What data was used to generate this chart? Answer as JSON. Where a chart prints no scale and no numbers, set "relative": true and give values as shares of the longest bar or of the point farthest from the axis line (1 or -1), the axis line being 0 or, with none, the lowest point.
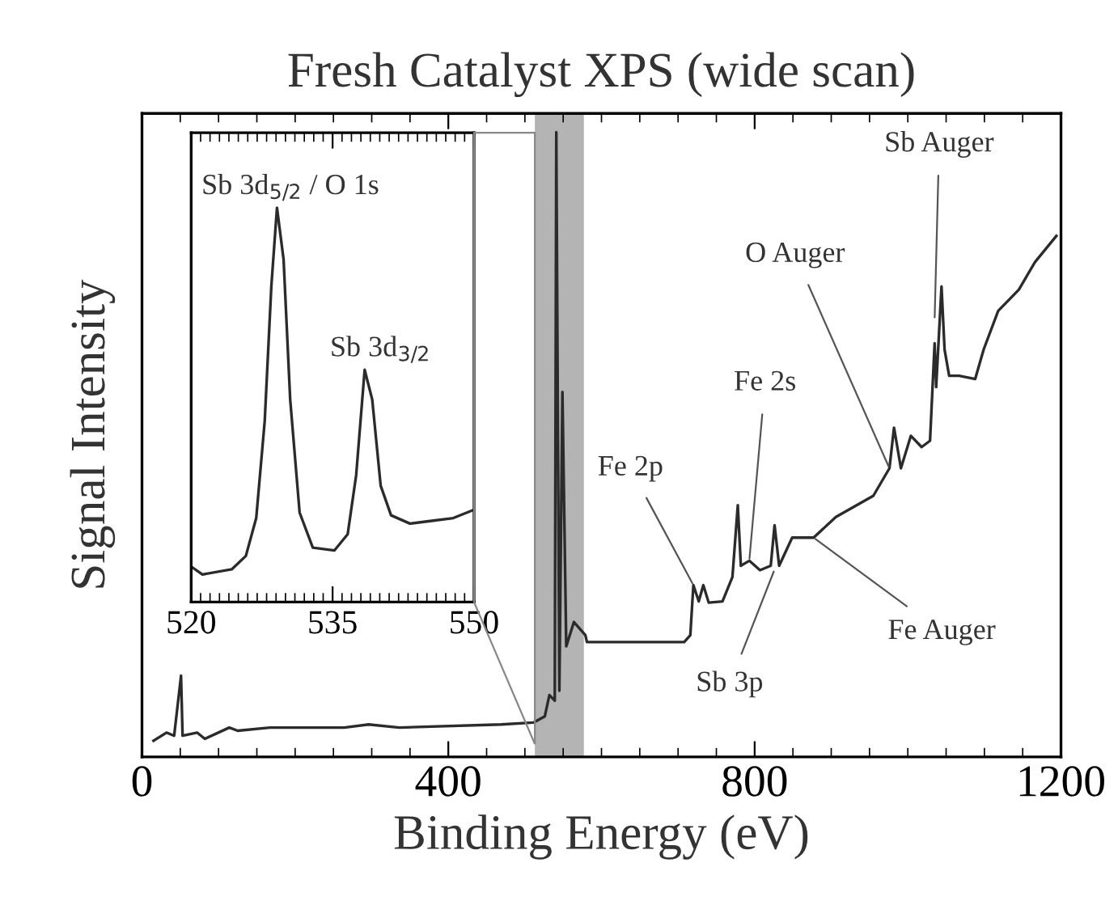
{
  "chart_data": [
    {
      "type": "line",
      "title": "Fresh Catalyst XPS (wide scan)",
      "xlabel": "Binding Energy (eV)",
      "ylabel": "Signal Intensity",
      "relative": true,
      "xlim": [
        0,
        1200
      ],
      "xticks": [
        0,
        400,
        800,
        1200
      ],
      "grid": false,
      "legend": false,
      "marker": "none",
      "line_style": "solid",
      "bands": [
        {
          "axis": "x",
          "from": 513,
          "to": 577,
          "label": null,
          "color": "#b4b4b4"
        }
      ],
      "annotations": [
        {
          "text": "Fe 2p",
          "x": 720,
          "y": 0.275
        },
        {
          "text": "Fe 2s",
          "x": 793,
          "y": 0.314
        },
        {
          "text": "Sb 3p",
          "x": 826,
          "y": 0.3
        },
        {
          "text": "Fe Auger",
          "x": 877,
          "y": 0.351
        },
        {
          "text": "O Auger",
          "x": 976,
          "y": 0.462
        },
        {
          "text": "Sb Auger",
          "x": 1035,
          "y": 0.7
        }
      ],
      "series": [
        {
          "color": "#2b2b2b",
          "x": [
            15,
            32,
            42,
            51,
            53,
            72,
            82,
            114,
            125,
            167,
            264,
            296,
            336,
            469,
            511,
            526,
            532,
            539,
            541,
            545,
            549,
            554,
            564,
            579,
            581,
            617,
            708,
            716,
            720,
            727,
            733,
            740,
            758,
            771,
            778,
            782,
            793,
            807,
            821,
            826,
            832,
            849,
            877,
            906,
            955,
            976,
            982,
            991,
            1004,
            1018,
            1029,
            1035,
            1037,
            1044,
            1048,
            1054,
            1067,
            1088,
            1099,
            1118,
            1145,
            1166,
            1194
          ],
          "values": [
            0.026,
            0.039,
            0.034,
            0.13,
            0.034,
            0.039,
            0.029,
            0.047,
            0.042,
            0.047,
            0.047,
            0.052,
            0.047,
            0.052,
            0.055,
            0.065,
            0.099,
            0.09,
            1.0,
            0.106,
            0.584,
            0.177,
            0.216,
            0.195,
            0.184,
            0.184,
            0.184,
            0.195,
            0.275,
            0.249,
            0.275,
            0.247,
            0.249,
            0.288,
            0.403,
            0.306,
            0.314,
            0.299,
            0.306,
            0.371,
            0.306,
            0.351,
            0.351,
            0.384,
            0.418,
            0.462,
            0.527,
            0.462,
            0.514,
            0.496,
            0.506,
            0.662,
            0.592,
            0.753,
            0.652,
            0.61,
            0.61,
            0.605,
            0.652,
            0.714,
            0.748,
            0.792,
            0.834
          ]
        }
      ]
    },
    {
      "type": "line",
      "relative": true,
      "xlim": [
        520,
        550
      ],
      "xticks": [
        520,
        535,
        550
      ],
      "grid": false,
      "legend": false,
      "marker": "none",
      "line_style": "solid",
      "annotations": [
        {
          "text": "Sb 3d$_{5/2}$ / O 1s",
          "x": 529.1,
          "y": 1.0
        },
        {
          "text": "Sb 3d$_{3/2}$",
          "x": 538.4,
          "y": 0.589
        }
      ],
      "series": [
        {
          "color": "#2b2b2b",
          "x": [
            520,
            521.2,
            524.3,
            525.8,
            526.9,
            527.8,
            528.5,
            529.1,
            529.8,
            530.5,
            531.5,
            532.9,
            535.2,
            536.6,
            537.5,
            538.4,
            539.2,
            540.1,
            541.2,
            543.2,
            545.5,
            547.8,
            550
          ],
          "values": [
            0.09,
            0.07,
            0.083,
            0.117,
            0.213,
            0.459,
            0.8,
            1.0,
            0.869,
            0.514,
            0.227,
            0.138,
            0.131,
            0.172,
            0.322,
            0.589,
            0.514,
            0.295,
            0.22,
            0.199,
            0.206,
            0.213,
            0.234
          ]
        }
      ]
    }
  ]
}
